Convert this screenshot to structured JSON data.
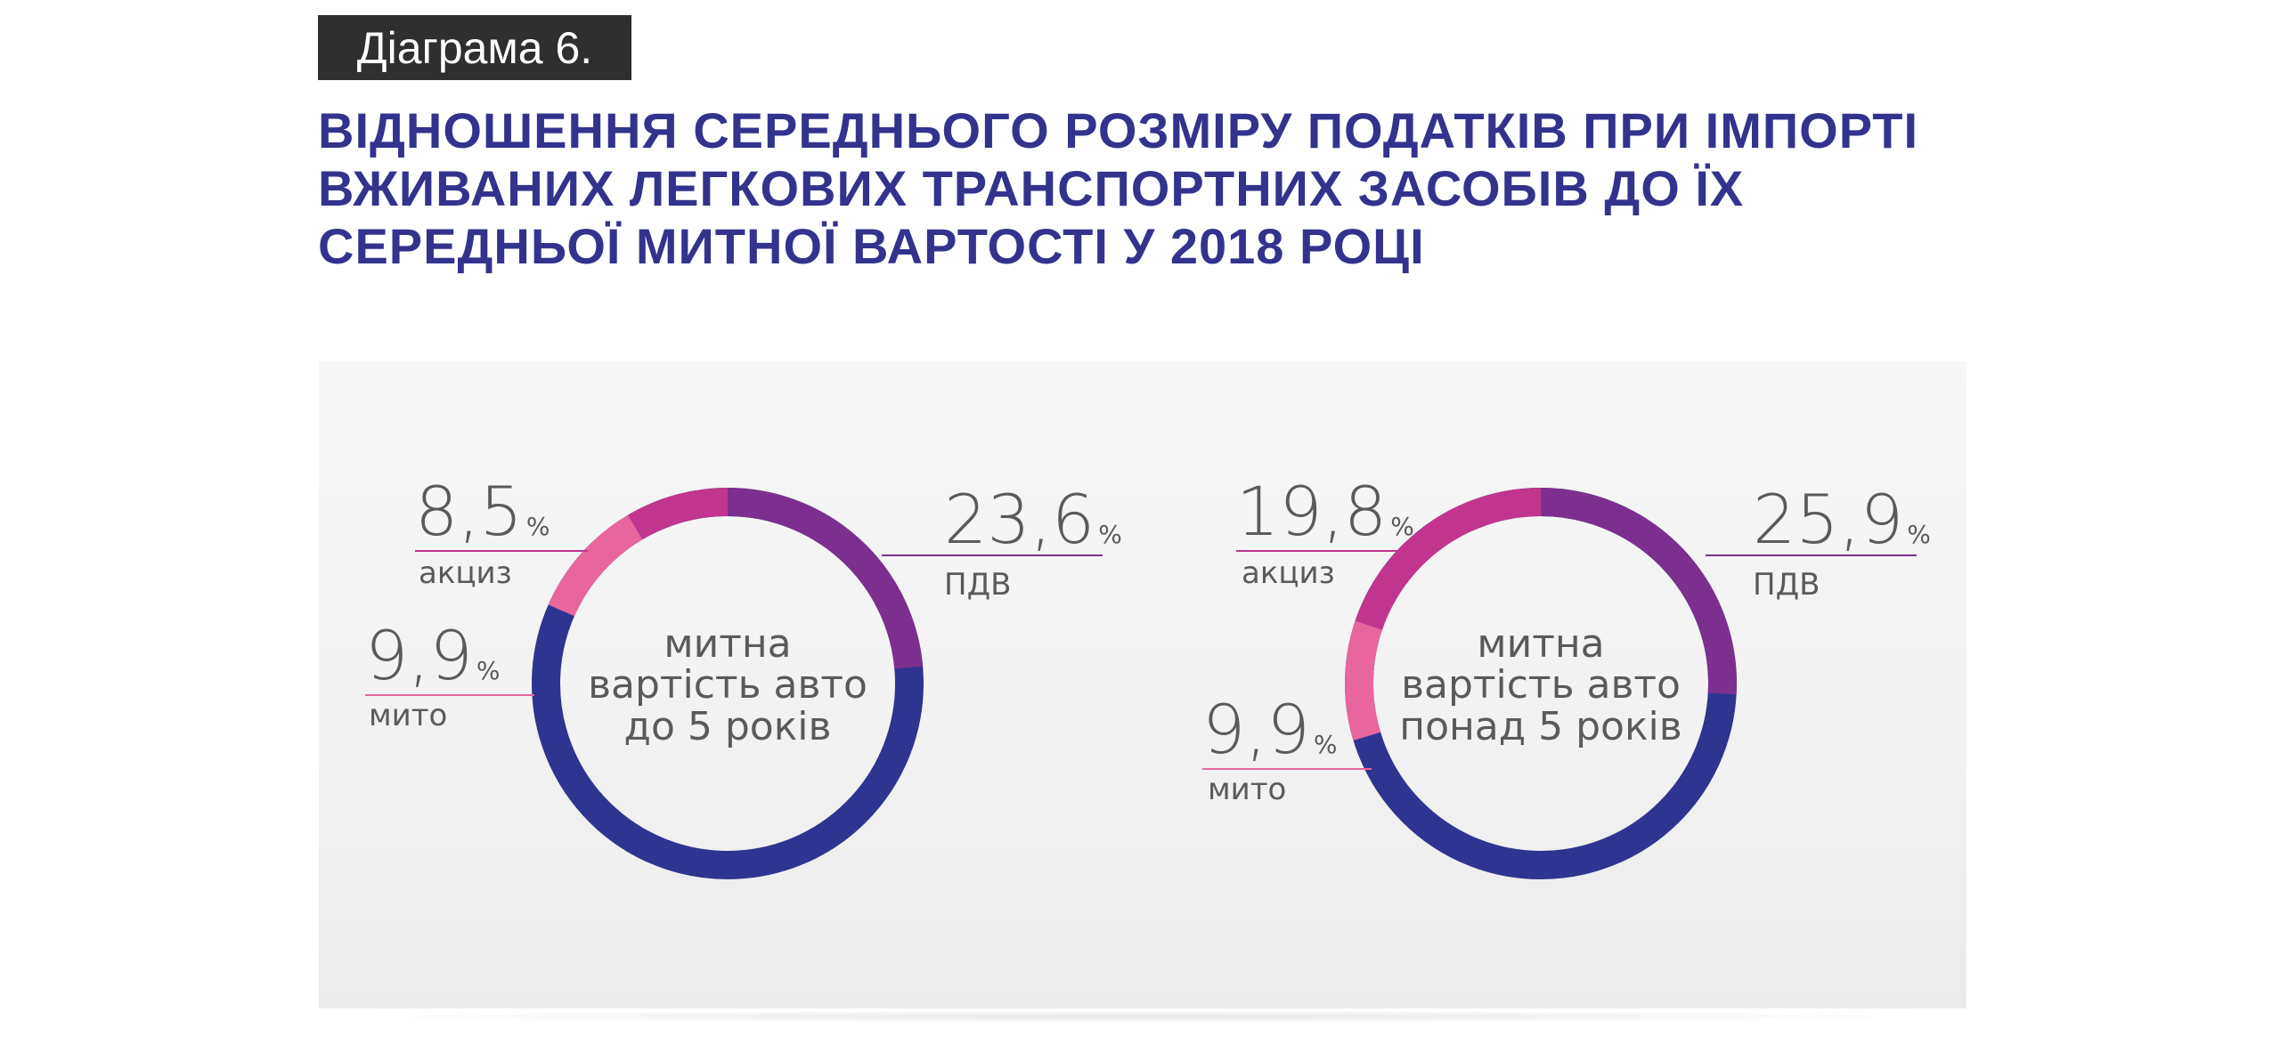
{
  "header": {
    "tag": "Діаграма 6.",
    "title_lines": [
      "ВІДНОШЕННЯ СЕРЕДНЬОГО РОЗМІРУ ПОДАТКІВ ПРИ ІМПОРТІ",
      "ВЖИВАНИХ ЛЕГКОВИХ ТРАНСПОРТНИХ ЗАСОБІВ ДО ЇХ",
      "СЕРЕДНЬОЇ МИТНОЇ ВАРТОСТІ У 2018 РОЦІ"
    ]
  },
  "colors": {
    "title": "#33338e",
    "pdv": "#7c2f8e",
    "akcyz": "#c1358f",
    "myto": "#e8669d",
    "base": "#2f3490",
    "text": "#5a5a5a"
  },
  "chart_data": [
    {
      "type": "pie",
      "center_label": [
        "митна",
        "вартість авто",
        "до 5 років"
      ],
      "slices": [
        {
          "label": "ПДВ",
          "value": 23.6,
          "display": "23,6",
          "unit": "%",
          "color": "#7c2f8e"
        },
        {
          "label": "акциз",
          "value": 8.5,
          "display": "8,5",
          "unit": "%",
          "color": "#c1358f"
        },
        {
          "label": "мито",
          "value": 9.9,
          "display": "9,9",
          "unit": "%",
          "color": "#e8669d"
        }
      ]
    },
    {
      "type": "pie",
      "center_label": [
        "митна",
        "вартість авто",
        "понад 5 років"
      ],
      "slices": [
        {
          "label": "ПДВ",
          "value": 25.9,
          "display": "25,9",
          "unit": "%",
          "color": "#7c2f8e"
        },
        {
          "label": "акциз",
          "value": 19.8,
          "display": "19,8",
          "unit": "%",
          "color": "#c1358f"
        },
        {
          "label": "мито",
          "value": 9.9,
          "display": "9,9",
          "unit": "%",
          "color": "#e8669d"
        }
      ]
    }
  ]
}
